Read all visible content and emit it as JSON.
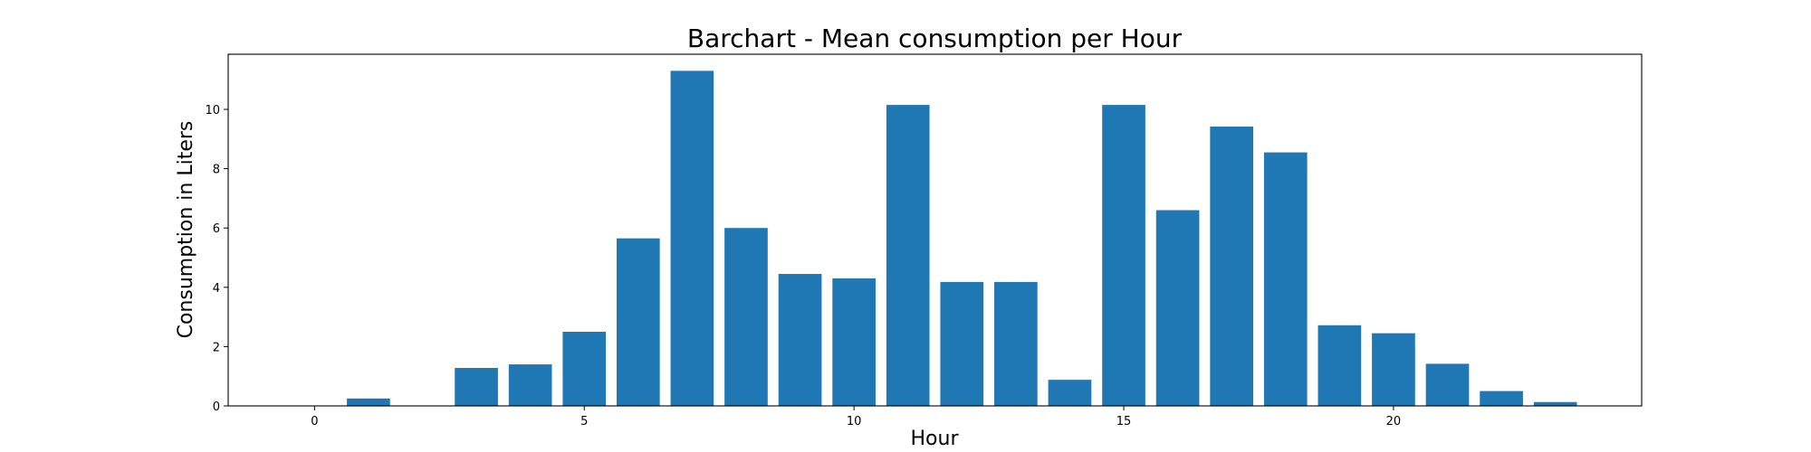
{
  "chart_data": {
    "type": "bar",
    "title": "Barchart - Mean consumption per Hour",
    "xlabel": "Hour",
    "ylabel": "Consumption in Liters",
    "x": [
      0,
      1,
      2,
      3,
      4,
      5,
      6,
      7,
      8,
      9,
      10,
      11,
      12,
      13,
      14,
      15,
      16,
      17,
      18,
      19,
      20,
      21,
      22,
      23
    ],
    "values": [
      0,
      0.25,
      0,
      1.28,
      1.4,
      2.5,
      5.65,
      11.3,
      6.0,
      4.45,
      4.3,
      10.15,
      4.18,
      4.18,
      0.88,
      10.15,
      6.6,
      9.42,
      8.55,
      2.72,
      2.45,
      1.42,
      0.5,
      0.13
    ],
    "xlim": [
      -1.6,
      24.6
    ],
    "ylim": [
      0,
      11.86
    ],
    "xticks": [
      0,
      5,
      10,
      15,
      20
    ],
    "yticks": [
      0,
      2,
      4,
      6,
      8,
      10
    ],
    "bar_color": "#1f77b4",
    "grid": false,
    "legend": "none"
  }
}
